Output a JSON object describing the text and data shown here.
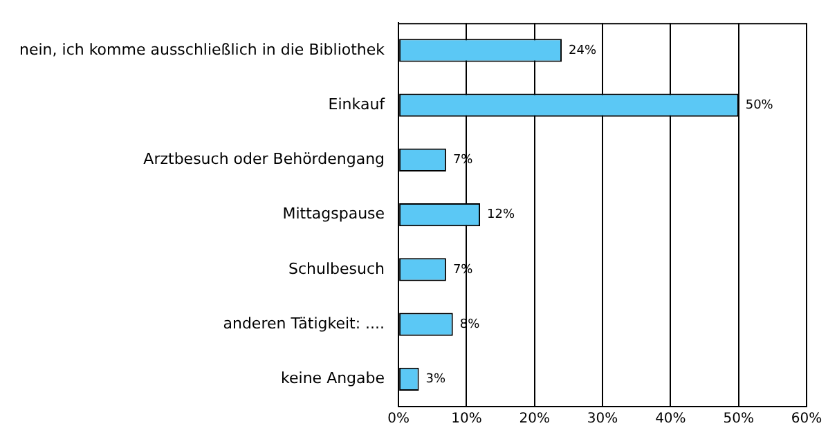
{
  "chart_data": {
    "type": "bar",
    "orientation": "horizontal",
    "categories": [
      "nein, ich komme ausschließlich in die Bibliothek",
      "Einkauf",
      "Arztbesuch oder Behördengang",
      "Mittagspause",
      "Schulbesuch",
      "anderen Tätigkeit: ....",
      "keine Angabe"
    ],
    "values": [
      24,
      50,
      7,
      12,
      7,
      8,
      3
    ],
    "value_labels": [
      "24%",
      "50%",
      "7%",
      "12%",
      "7%",
      "8%",
      "3%"
    ],
    "color": "#5bc8f5",
    "xlim": [
      0,
      60
    ],
    "xticks": [
      {
        "value": 0,
        "label": "0%"
      },
      {
        "value": 10,
        "label": "10%"
      },
      {
        "value": 20,
        "label": "20%"
      },
      {
        "value": 30,
        "label": "30%"
      },
      {
        "value": 40,
        "label": "40%"
      },
      {
        "value": 50,
        "label": "50%"
      },
      {
        "value": 60,
        "label": "60%"
      }
    ],
    "grid": "x",
    "legend": false
  }
}
